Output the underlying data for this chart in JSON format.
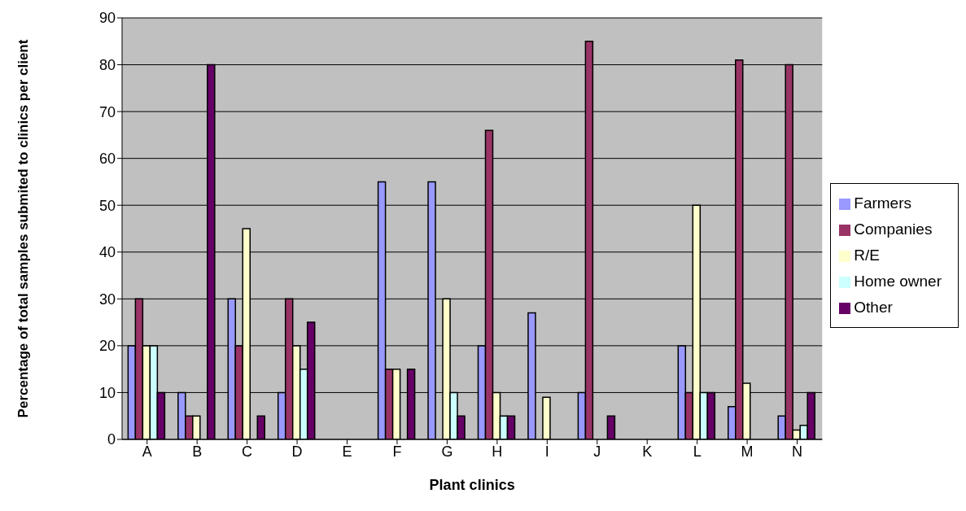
{
  "chart_data": {
    "type": "bar",
    "xlabel": "Plant clinics",
    "ylabel": "Percentage of total samples submited to clinics per client",
    "categories": [
      "A",
      "B",
      "C",
      "D",
      "E",
      "F",
      "G",
      "H",
      "I",
      "J",
      "K",
      "L",
      "M",
      "N"
    ],
    "series": [
      {
        "name": "Farmers",
        "color": "#9999ff",
        "values": [
          20,
          10,
          30,
          10,
          null,
          55,
          55,
          20,
          27,
          10,
          null,
          20,
          7,
          5
        ]
      },
      {
        "name": "Companies",
        "color": "#993366",
        "values": [
          30,
          5,
          20,
          30,
          null,
          15,
          null,
          66,
          null,
          85,
          null,
          10,
          81,
          80
        ]
      },
      {
        "name": "R/E",
        "color": "#ffffcc",
        "values": [
          20,
          5,
          45,
          20,
          null,
          15,
          30,
          10,
          9,
          null,
          null,
          50,
          12,
          2
        ]
      },
      {
        "name": "Home owner",
        "color": "#ccffff",
        "values": [
          20,
          null,
          null,
          15,
          null,
          null,
          10,
          5,
          null,
          null,
          null,
          10,
          null,
          3
        ]
      },
      {
        "name": "Other",
        "color": "#660066",
        "values": [
          10,
          80,
          5,
          25,
          null,
          15,
          5,
          5,
          null,
          5,
          null,
          10,
          null,
          10
        ]
      }
    ],
    "ylim": [
      0,
      90
    ],
    "yticks": [
      0,
      10,
      20,
      30,
      40,
      50,
      60,
      70,
      80,
      90
    ],
    "grid": "y",
    "legend": "right"
  }
}
